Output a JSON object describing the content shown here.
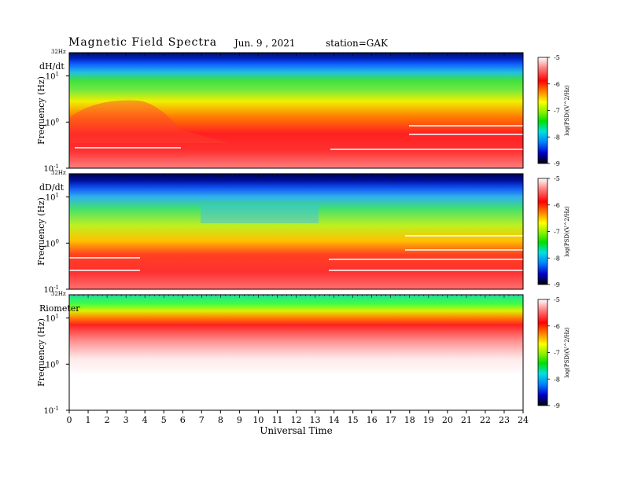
{
  "header": {
    "title": "Magnetic  Field  Spectra",
    "date": "Jun. 9  , 2021",
    "station": "station=GAK"
  },
  "panels": [
    {
      "label": "dH/dt",
      "freq_top_label": "32Hz",
      "ylabel": "Frequency  (Hz)",
      "cbar_label": "log(PSD)(V^2/Hz)"
    },
    {
      "label": "dD/dt",
      "freq_top_label": "32Hz",
      "ylabel": "Frequency  (Hz)",
      "cbar_label": "log(PSD)(V^2/Hz)"
    },
    {
      "label": "Riometer",
      "freq_top_label": "32Hz",
      "ylabel": "Frequency  (Hz)",
      "cbar_label": "log(PSD)(V^2/Hz)"
    }
  ],
  "chart_data": {
    "type": "heatmap",
    "title": "Magnetic  Field  Spectra",
    "xlabel": "Universal  Time",
    "x_ticks": [
      "0",
      "1",
      "2",
      "3",
      "4",
      "5",
      "6",
      "7",
      "8",
      "9",
      "10",
      "11",
      "12",
      "13",
      "14",
      "15",
      "16",
      "17",
      "18",
      "19",
      "20",
      "21",
      "22",
      "23",
      "24"
    ],
    "xlim": [
      0,
      24
    ],
    "y_scale": "log",
    "ylim_hz": [
      0.1,
      32
    ],
    "y_ticks": [
      {
        "value": 10,
        "base": "10",
        "exp": "1"
      },
      {
        "value": 1,
        "base": "10",
        "exp": "0"
      },
      {
        "value": 0.1,
        "base": "10",
        "exp": "-1"
      }
    ],
    "colorbar": {
      "ticks": [
        "-5",
        "-6",
        "-7",
        "-8",
        "-9"
      ],
      "range": [
        -9,
        -5
      ],
      "colors": [
        "#000000",
        "#0000cc",
        "#0080ff",
        "#00e0e0",
        "#00e000",
        "#c8f000",
        "#ffff00",
        "#ff8000",
        "#ff0000",
        "#ff9090",
        "#ffffff"
      ]
    },
    "series": [
      {
        "name": "dH/dt"
      },
      {
        "name": "dD/dt"
      },
      {
        "name": "Riometer"
      }
    ]
  }
}
